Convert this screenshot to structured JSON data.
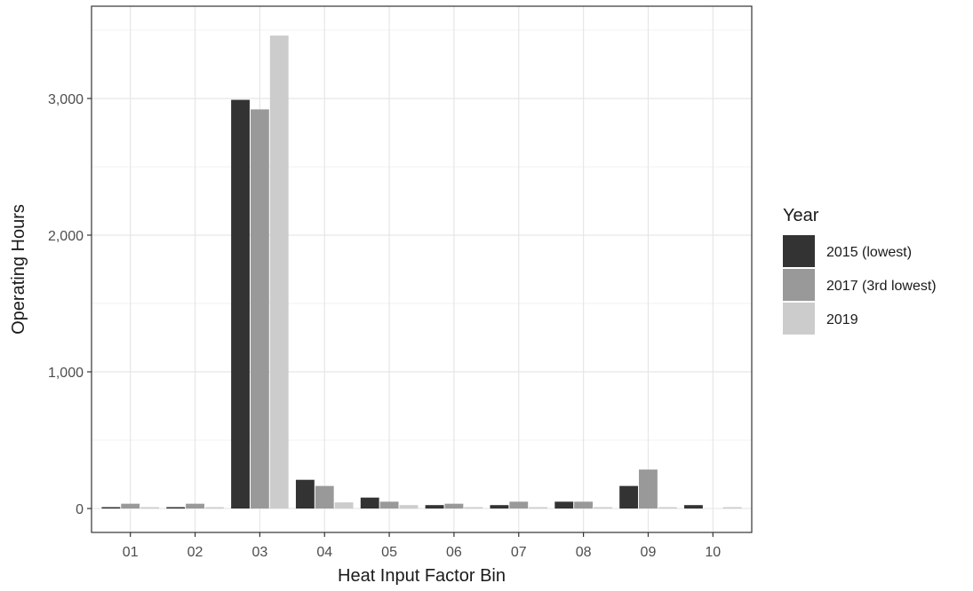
{
  "chart_data": {
    "type": "bar",
    "xlabel": "Heat Input Factor Bin",
    "ylabel": "Operating Hours",
    "categories": [
      "01",
      "02",
      "03",
      "04",
      "05",
      "06",
      "07",
      "08",
      "09",
      "10"
    ],
    "ylim": [
      0,
      3500
    ],
    "yticks": [
      0,
      1000,
      2000,
      3000
    ],
    "ytick_labels": [
      "0",
      "1,000",
      "2,000",
      "3,000"
    ],
    "grid": true,
    "legend": {
      "title": "Year",
      "position": "right"
    },
    "series": [
      {
        "name": "2015 (lowest)",
        "color": "#333333",
        "values": [
          10,
          10,
          2990,
          210,
          80,
          25,
          25,
          50,
          165,
          25
        ]
      },
      {
        "name": "2017 (3rd lowest)",
        "color": "#999999",
        "values": [
          35,
          35,
          2920,
          165,
          50,
          35,
          50,
          50,
          285,
          null
        ]
      },
      {
        "name": "2019",
        "color": "#cccccc",
        "values": [
          10,
          10,
          3460,
          45,
          25,
          10,
          10,
          10,
          10,
          10
        ]
      }
    ]
  }
}
